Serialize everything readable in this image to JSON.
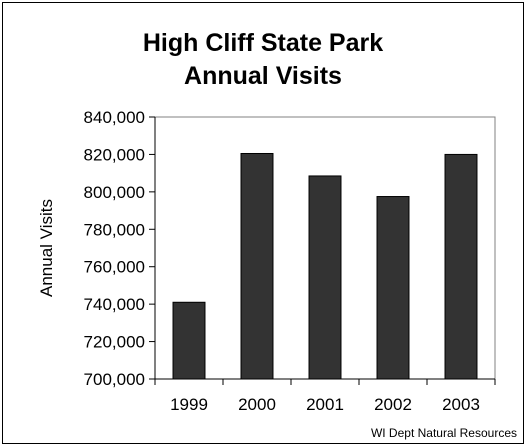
{
  "chart_data": {
    "type": "bar",
    "title": [
      "High Cliff State Park",
      "Annual Visits"
    ],
    "ylabel": "Annual Visits",
    "xlabel": "",
    "categories": [
      "1999",
      "2000",
      "2001",
      "2002",
      "2003"
    ],
    "values": [
      741000,
      820500,
      808500,
      797500,
      820000
    ],
    "ylim": [
      700000,
      840000
    ],
    "yticks": [
      "700,000",
      "720,000",
      "740,000",
      "760,000",
      "780,000",
      "800,000",
      "820,000",
      "840,000"
    ],
    "grid": false,
    "legend": "none",
    "bar_color": "#333333",
    "source": "WI Dept Natural Resources"
  }
}
